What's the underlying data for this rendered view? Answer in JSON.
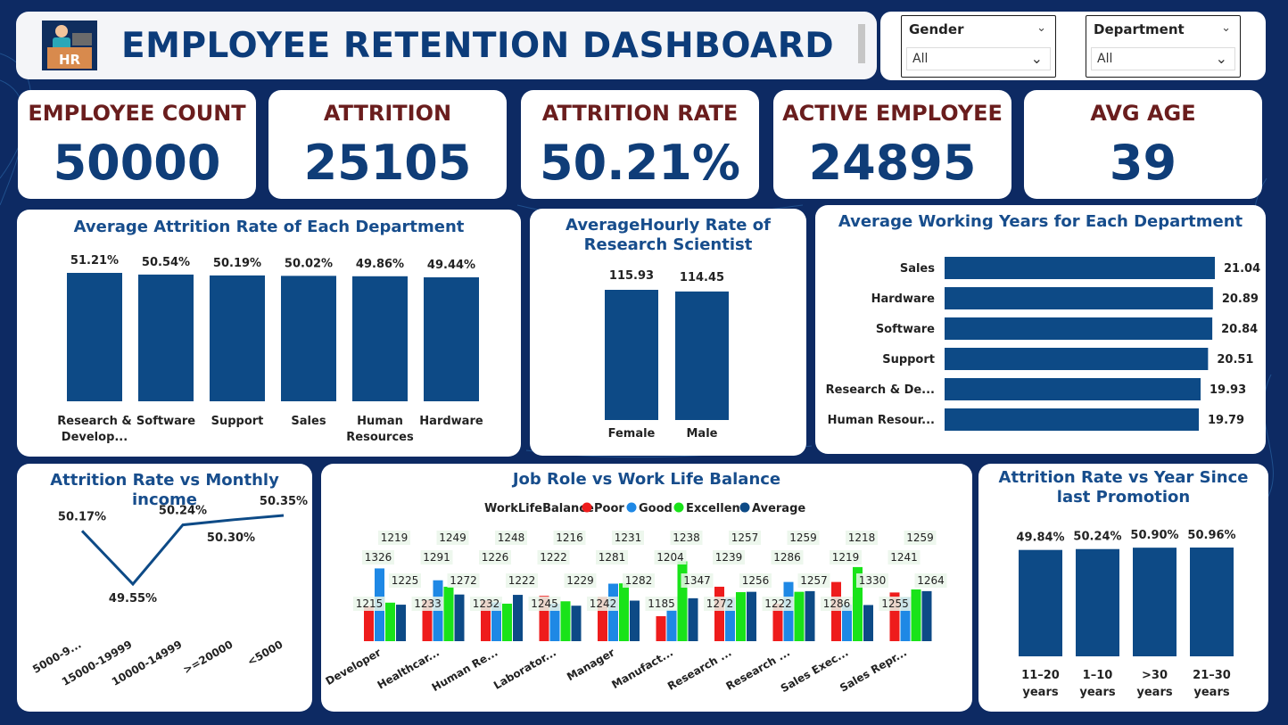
{
  "header": {
    "logo_text": "HR",
    "title": "EMPLOYEE RETENTION DASHBOARD"
  },
  "filters": [
    {
      "label": "Gender",
      "value": "All"
    },
    {
      "label": "Department",
      "value": "All"
    }
  ],
  "kpis": [
    {
      "label": "EMPLOYEE COUNT",
      "value": "50000"
    },
    {
      "label": "ATTRITION",
      "value": "25105"
    },
    {
      "label": "ATTRITION RATE",
      "value": "50.21%"
    },
    {
      "label": "ACTIVE EMPLOYEE",
      "value": "24895"
    },
    {
      "label": "AVG AGE",
      "value": "39"
    }
  ],
  "colors": {
    "bar": "#0d4a86",
    "poor": "#ee1c1c",
    "good": "#1e88e5",
    "excellent": "#19e319",
    "average": "#0d4a86",
    "title": "#174d8c",
    "kpi_label": "#6a1d1d",
    "kpi_value": "#0f3d78"
  },
  "chart_data": [
    {
      "id": "dept_attrition",
      "type": "bar",
      "title": "Average Attrition Rate of Each Department",
      "categories": [
        "Research & Develop...",
        "Software",
        "Support",
        "Sales",
        "Human Resources",
        "Hardware"
      ],
      "values": [
        51.21,
        50.54,
        50.19,
        50.02,
        49.86,
        49.44
      ],
      "labels": [
        "51.21%",
        "50.54%",
        "50.19%",
        "50.02%",
        "49.86%",
        "49.44%"
      ]
    },
    {
      "id": "hourly_rate",
      "type": "bar",
      "title": "AverageHourly Rate of Research Scientist",
      "categories": [
        "Female",
        "Male"
      ],
      "values": [
        115.93,
        114.45
      ],
      "labels": [
        "115.93",
        "114.45"
      ]
    },
    {
      "id": "working_years",
      "type": "bar",
      "orientation": "horizontal",
      "title": "Average Working Years for Each Department",
      "categories": [
        "Sales",
        "Hardware",
        "Software",
        "Support",
        "Research & De...",
        "Human Resour..."
      ],
      "values": [
        21.04,
        20.89,
        20.84,
        20.51,
        19.93,
        19.79
      ],
      "labels": [
        "21.04",
        "20.89",
        "20.84",
        "20.51",
        "19.93",
        "19.79"
      ]
    },
    {
      "id": "income_attrition",
      "type": "line",
      "title": "Attrition Rate vs Monthly income",
      "categories": [
        "5000-9...",
        "15000-19999",
        "10000-14999",
        ">=20000",
        "<5000"
      ],
      "values": [
        50.17,
        49.55,
        50.24,
        50.3,
        50.35
      ],
      "labels": [
        "50.17%",
        "49.55%",
        "50.24%",
        "50.30%",
        "50.35%"
      ]
    },
    {
      "id": "wlb",
      "type": "bar",
      "title": "Job Role vs Work Life Balance",
      "legend_title": "WorkLifeBalance",
      "categories": [
        "Developer",
        "Healthcar...",
        "Human Re...",
        "Laborator...",
        "Manager",
        "Manufact...",
        "Research ...",
        "Research ...",
        "Sales Exec...",
        "Sales Repr..."
      ],
      "series": [
        {
          "name": "Poor",
          "values": [
            1215,
            1233,
            1232,
            1245,
            1242,
            1185,
            1272,
            1222,
            1286,
            1255
          ]
        },
        {
          "name": "Good",
          "values": [
            1326,
            1291,
            1226,
            1222,
            1281,
            1204,
            1239,
            1286,
            1219,
            1241
          ]
        },
        {
          "name": "Excellent",
          "values": [
            1225,
            1272,
            1222,
            1229,
            1282,
            1347,
            1256,
            1257,
            1330,
            1264
          ]
        },
        {
          "name": "Average",
          "values": [
            1219,
            1249,
            1248,
            1216,
            1231,
            1238,
            1257,
            1259,
            1218,
            1259
          ]
        }
      ]
    },
    {
      "id": "promotion",
      "type": "bar",
      "title": "Attrition Rate vs Year Since last Promotion",
      "categories": [
        "11–20 years",
        "1–10 years",
        ">30 years",
        "21–30 years"
      ],
      "values": [
        49.84,
        50.24,
        50.9,
        50.96
      ],
      "labels": [
        "49.84%",
        "50.24%",
        "50.90%",
        "50.96%"
      ]
    }
  ]
}
